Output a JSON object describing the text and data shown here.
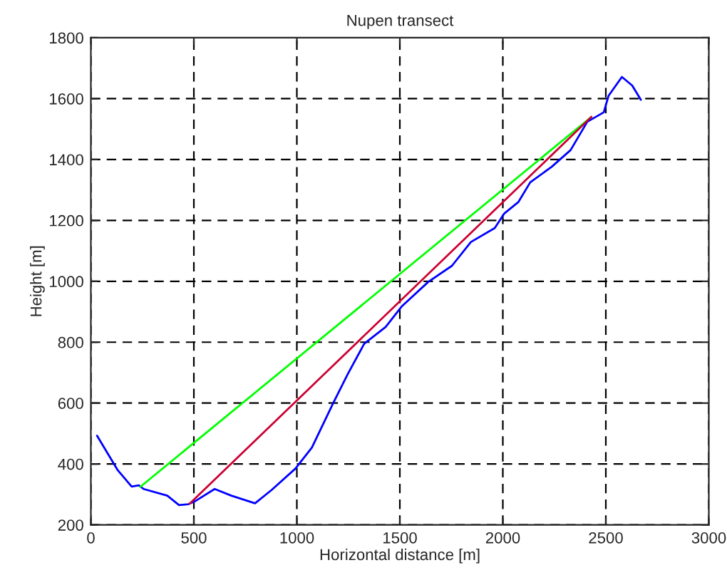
{
  "chart_data": {
    "type": "line",
    "title": "Nupen transect",
    "xlabel": "Horizontal distance [m]",
    "ylabel": "Height [m]",
    "series": [
      {
        "color": "#0000ff",
        "x": [
          30,
          129,
          198,
          233,
          256,
          371,
          428,
          474,
          509,
          601,
          682,
          797,
          878,
          993,
          1073,
          1177,
          1246,
          1327,
          1431,
          1511,
          1638,
          1753,
          1845,
          1961,
          2006,
          2075,
          2133,
          2237,
          2329,
          2410,
          2490,
          2513,
          2578,
          2628,
          2670
        ],
        "values": [
          493,
          381,
          326,
          330,
          318,
          296,
          265,
          268,
          279,
          318,
          296,
          271,
          315,
          385,
          454,
          601,
          694,
          795,
          850,
          919,
          998,
          1051,
          1129,
          1175,
          1222,
          1260,
          1325,
          1376,
          1431,
          1524,
          1555,
          1609,
          1671,
          1643,
          1596
        ]
      },
      {
        "color": "#00ff00",
        "x": [
          240,
          2430
        ],
        "values": [
          325,
          1540
        ]
      },
      {
        "color": "#cc0033",
        "x": [
          480,
          2430
        ],
        "values": [
          270,
          1540
        ]
      }
    ],
    "xlim": [
      0,
      3000
    ],
    "xticks": [
      0,
      500,
      1000,
      1500,
      2000,
      2500,
      3000
    ],
    "ylim": [
      200,
      1800
    ],
    "yticks": [
      200,
      400,
      600,
      800,
      1000,
      1200,
      1400,
      1600,
      1800
    ],
    "grid": true,
    "line_style": "solid",
    "legend": false
  }
}
